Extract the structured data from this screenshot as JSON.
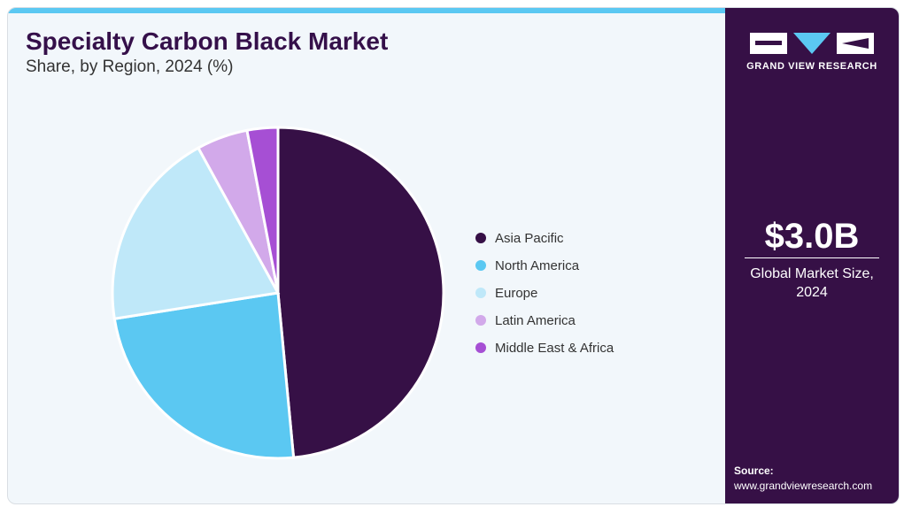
{
  "header": {
    "title": "Specialty Carbon Black Market",
    "subtitle": "Share, by Region, 2024 (%)"
  },
  "sidebar": {
    "brand_text": "GRAND VIEW RESEARCH",
    "metric_value": "$3.0B",
    "metric_label": "Global Market Size, 2024",
    "source_label": "Source:",
    "source_url": "www.grandviewresearch.com"
  },
  "colors": {
    "background": "#f2f7fb",
    "sidebar": "#361046",
    "accent_bar": "#5bc8f2"
  },
  "chart_data": {
    "type": "pie",
    "title": "Specialty Carbon Black Market",
    "subtitle": "Share, by Region, 2024 (%)",
    "legend_position": "right",
    "series": [
      {
        "name": "Asia Pacific",
        "value": 48.5,
        "color": "#361046"
      },
      {
        "name": "North America",
        "value": 24.0,
        "color": "#5bc8f2"
      },
      {
        "name": "Europe",
        "value": 19.5,
        "color": "#bfe8f9"
      },
      {
        "name": "Latin America",
        "value": 5.0,
        "color": "#d2a9ea"
      },
      {
        "name": "Middle East & Africa",
        "value": 3.0,
        "color": "#a64fd4"
      }
    ]
  }
}
